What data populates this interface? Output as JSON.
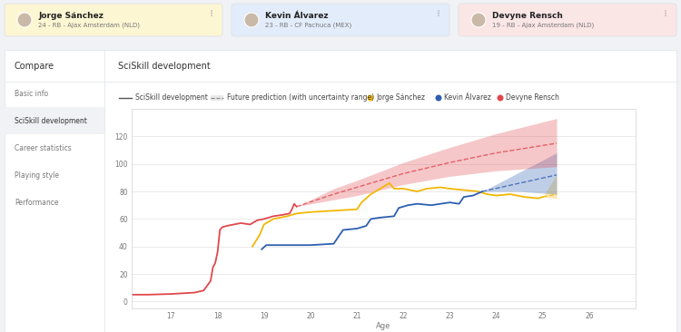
{
  "cards": [
    {
      "name": "Jorge Sánchez",
      "details": "24 - RB - Ajax Amsterdam (NLD)"
    },
    {
      "name": "Kevin Álvarez",
      "details": "23 - RB - CF Pachuca (MEX)"
    },
    {
      "name": "Devyne Rensch",
      "details": "19 - RB - Ajax Amsterdam (NLD)"
    }
  ],
  "sidebar": {
    "title": "Compare",
    "items": [
      "Basic info",
      "SciSkill development",
      "Career statistics",
      "Playing style",
      "Performance"
    ],
    "selected": "SciSkill development"
  },
  "chart_data": {
    "type": "line",
    "title": "SciSkill development",
    "x_label": "Age",
    "legend_items": [
      "SciSkill development",
      "Future prediction (with uncertainty range)"
    ],
    "xlim": [
      16.15,
      27
    ],
    "xticks": [
      17,
      18,
      19,
      20,
      21,
      22,
      23,
      24,
      25,
      26
    ],
    "ylim": [
      -5,
      140
    ],
    "yticks": [
      0,
      20,
      40,
      60,
      80,
      100,
      120
    ],
    "grid": true,
    "series": [
      {
        "name": "Jorge Sánchez",
        "color": "#f2b705",
        "x": [
          18.75,
          18.9,
          19.0,
          19.2,
          19.5,
          19.7,
          20.0,
          20.5,
          21.0,
          21.1,
          21.3,
          21.5,
          21.7,
          21.8,
          22.0,
          22.3,
          22.5,
          22.8,
          23.0,
          23.3,
          23.6,
          23.8,
          24.0,
          24.3,
          24.6,
          24.9,
          25.0
        ],
        "values": [
          40,
          48,
          56,
          60,
          62,
          64,
          65,
          66,
          67,
          72,
          78,
          82,
          86,
          82,
          82,
          80,
          82,
          83,
          82,
          81,
          80,
          78,
          77,
          78,
          76,
          75,
          76
        ],
        "prediction_x": [
          25.0,
          25.3
        ],
        "prediction": [
          76,
          78
        ],
        "lower": [
          76,
          75
        ],
        "upper": [
          76,
          92
        ]
      },
      {
        "name": "Kevin Álvarez",
        "color": "#2d5fb0",
        "x": [
          18.95,
          19.05,
          19.5,
          20.0,
          20.5,
          20.6,
          20.7,
          21.0,
          21.2,
          21.3,
          21.5,
          21.8,
          21.9,
          22.1,
          22.3,
          22.6,
          23.0,
          23.2,
          23.3,
          23.5,
          23.7
        ],
        "values": [
          38,
          41,
          41,
          41,
          42,
          47,
          52,
          53,
          55,
          60,
          61,
          62,
          68,
          70,
          71,
          70,
          72,
          71,
          76,
          77,
          80
        ],
        "prediction_x": [
          23.7,
          24.5,
          25.3
        ],
        "prediction": [
          80,
          86,
          92
        ],
        "lower": [
          80,
          80,
          78
        ],
        "upper": [
          80,
          94,
          108
        ]
      },
      {
        "name": "Devyne Rensch",
        "color": "#e0474c",
        "x": [
          16.15,
          16.5,
          17.0,
          17.5,
          17.7,
          17.85,
          17.9,
          17.95,
          18.0,
          18.05,
          18.1,
          18.2,
          18.35,
          18.5,
          18.7,
          18.85,
          19.0,
          19.2,
          19.4,
          19.55,
          19.6,
          19.65,
          19.7
        ],
        "values": [
          5,
          5,
          5.5,
          6.5,
          8,
          15,
          25,
          28,
          36,
          52,
          54,
          55,
          56,
          57,
          56,
          59,
          60,
          62,
          63,
          64,
          67,
          71,
          69
        ],
        "prediction_x": [
          19.7,
          20.5,
          21,
          22,
          23,
          24,
          25.3
        ],
        "prediction": [
          69,
          78,
          83,
          93,
          101,
          108,
          115
        ],
        "lower": [
          69,
          74,
          77,
          85,
          91,
          95,
          98
        ],
        "upper": [
          69,
          82,
          88,
          101,
          112,
          122,
          133
        ]
      }
    ]
  }
}
